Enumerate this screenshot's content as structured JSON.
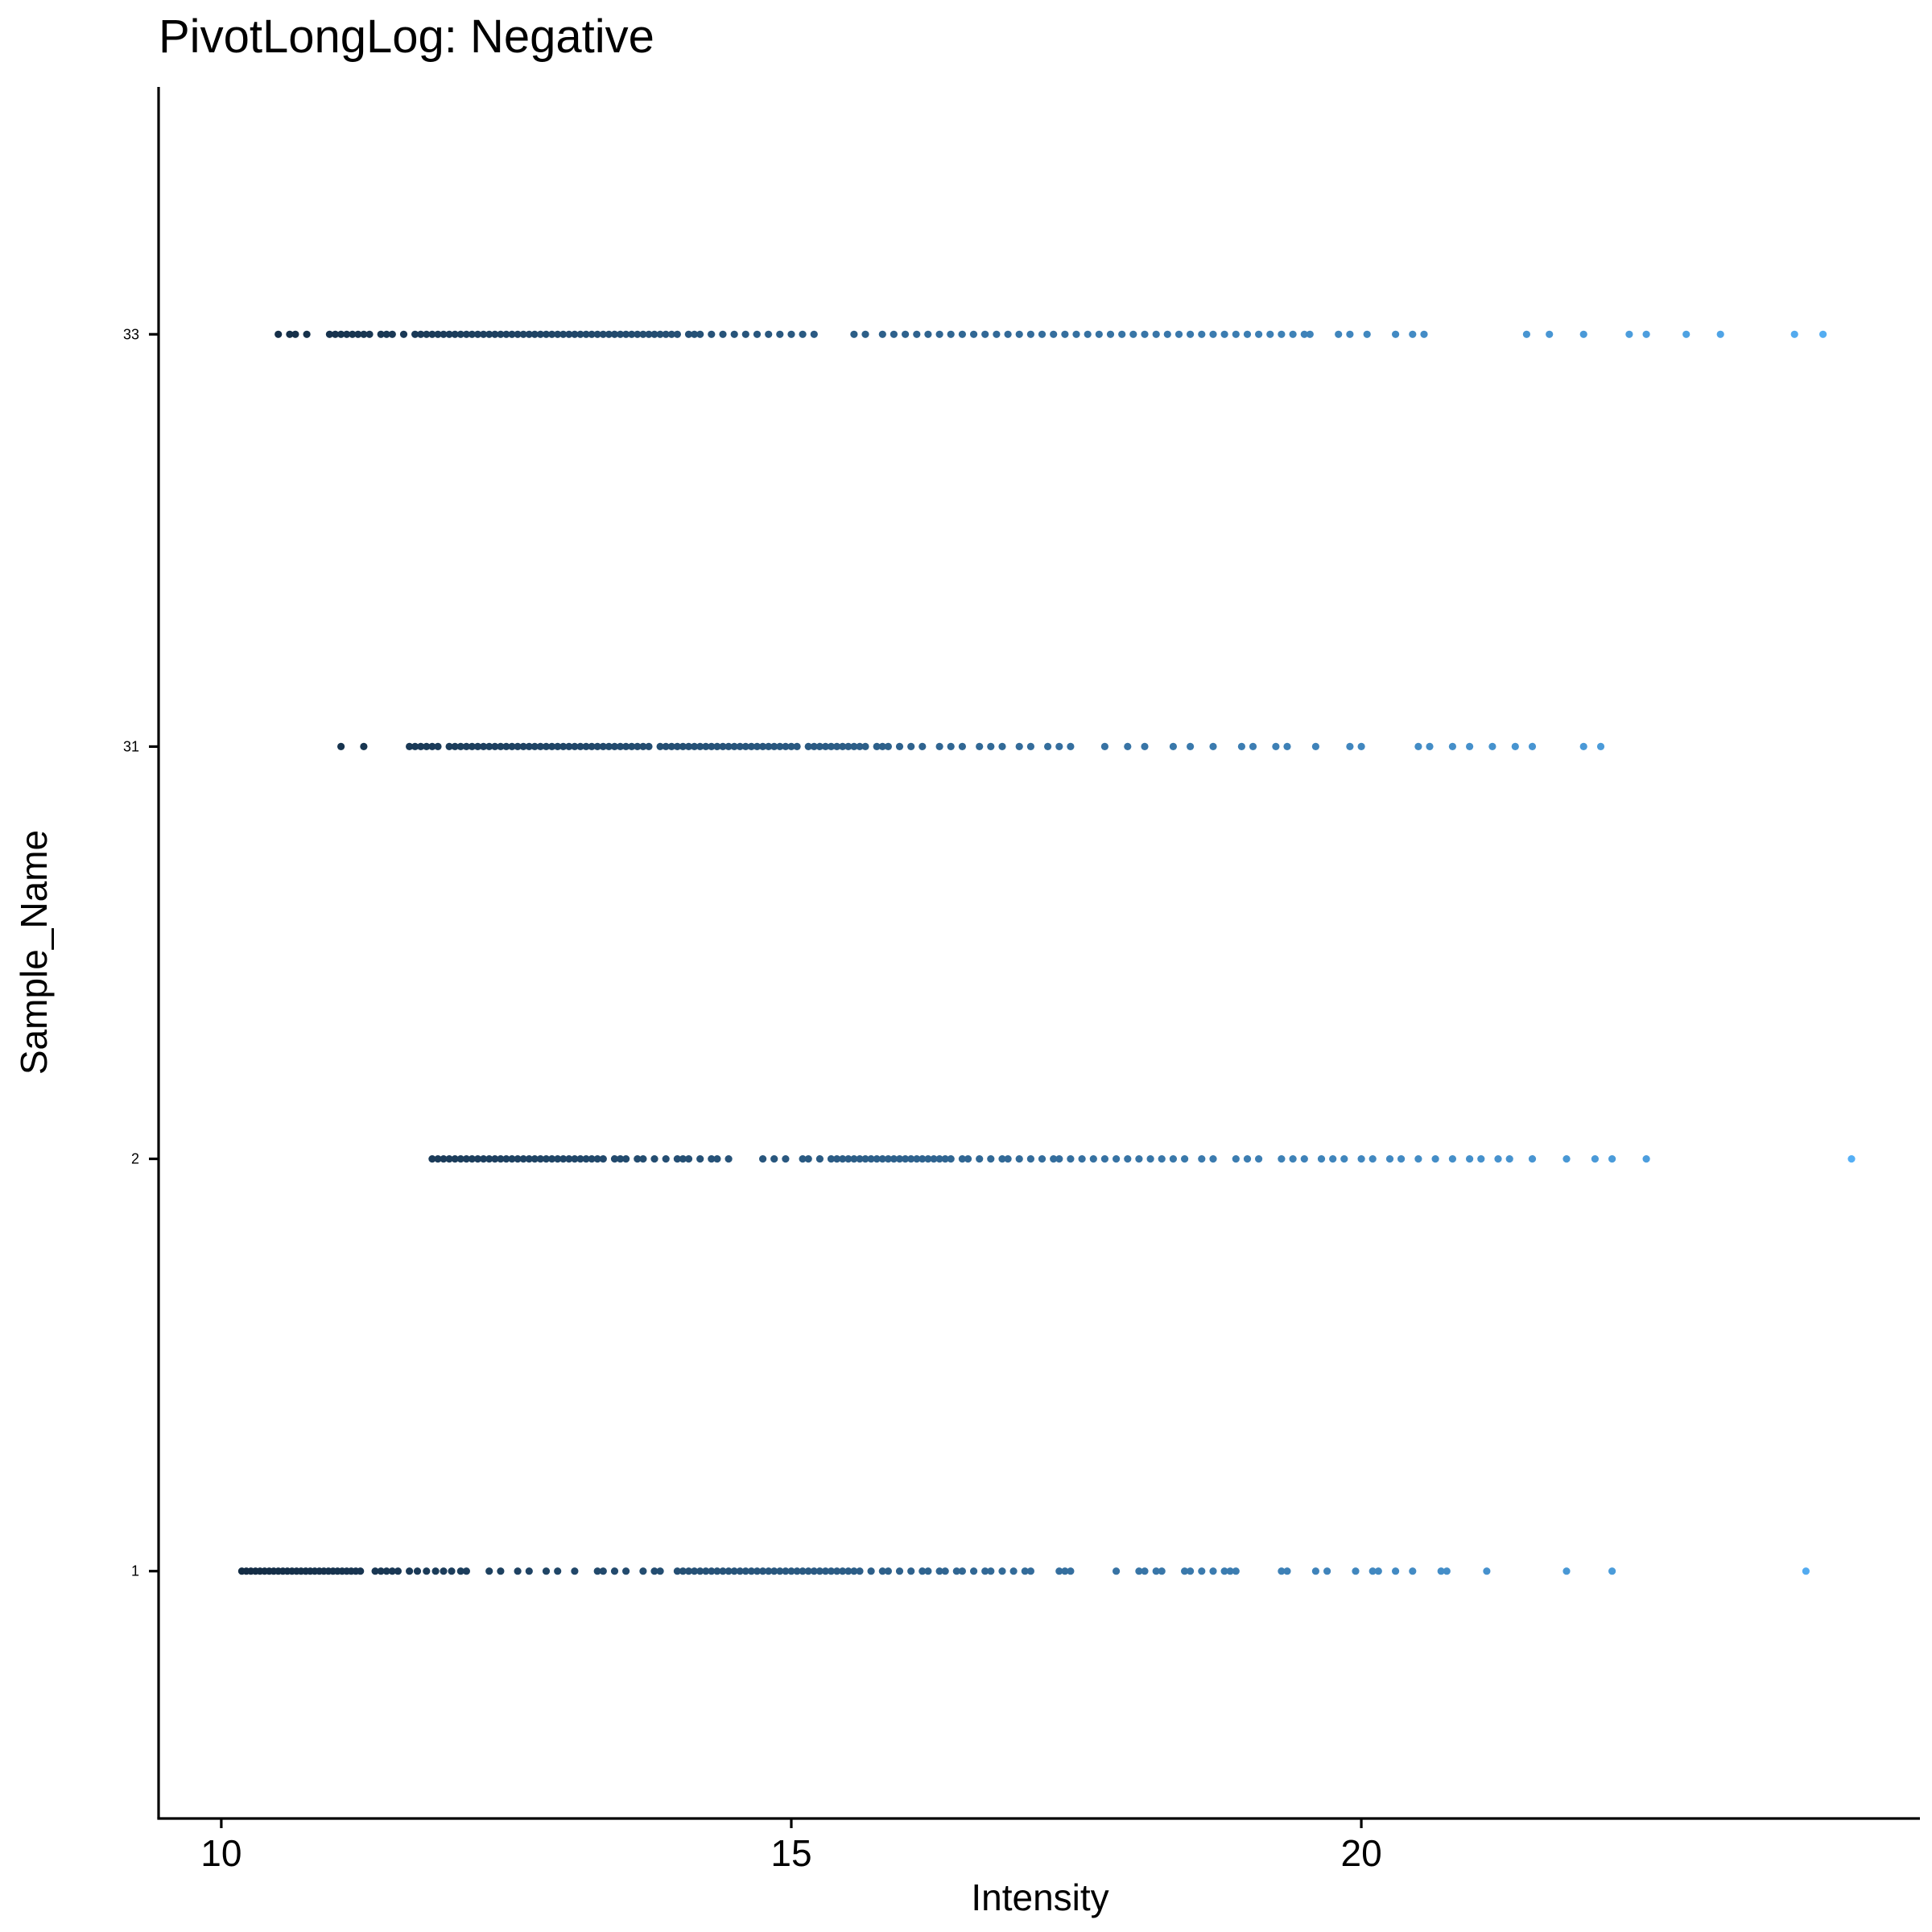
{
  "chart_data": {
    "type": "scatter",
    "title": "PivotLongLog: Negative",
    "xlabel": "Intensity",
    "ylabel": "Sample_Name",
    "xlim": [
      9.45,
      24.9
    ],
    "x_ticks": [
      10,
      15,
      20
    ],
    "categories": [
      "1",
      "2",
      "31",
      "33"
    ],
    "grid": false,
    "legend": "none",
    "color_scale": {
      "low": "#132b43",
      "high": "#56b1f7",
      "domain": [
        10.1,
        24.5
      ]
    },
    "series": [
      {
        "category": "1",
        "x": [
          10.18,
          10.22,
          10.26,
          10.3,
          10.34,
          10.38,
          10.42,
          10.46,
          10.5,
          10.54,
          10.58,
          10.62,
          10.66,
          10.7,
          10.74,
          10.78,
          10.82,
          10.86,
          10.9,
          10.94,
          10.98,
          11.02,
          11.06,
          11.1,
          11.14,
          11.18,
          11.22,
          11.35,
          11.4,
          11.45,
          11.5,
          11.55,
          11.65,
          11.72,
          11.8,
          11.88,
          11.95,
          12.02,
          12.1,
          12.15,
          12.35,
          12.45,
          12.6,
          12.7,
          12.85,
          12.95,
          13.1,
          13.3,
          13.35,
          13.45,
          13.55,
          13.7,
          13.8,
          13.85,
          14.0,
          14.05,
          14.1,
          14.15,
          14.2,
          14.25,
          14.3,
          14.35,
          14.4,
          14.45,
          14.5,
          14.55,
          14.6,
          14.65,
          14.7,
          14.75,
          14.8,
          14.85,
          14.9,
          14.95,
          15.0,
          15.05,
          15.1,
          15.15,
          15.2,
          15.25,
          15.3,
          15.35,
          15.4,
          15.45,
          15.5,
          15.55,
          15.6,
          15.7,
          15.8,
          15.85,
          15.95,
          16.05,
          16.15,
          16.2,
          16.3,
          16.35,
          16.45,
          16.5,
          16.6,
          16.7,
          16.75,
          16.85,
          16.95,
          17.05,
          17.1,
          17.35,
          17.4,
          17.45,
          17.85,
          18.05,
          18.1,
          18.2,
          18.25,
          18.45,
          18.5,
          18.6,
          18.7,
          18.8,
          18.85,
          18.9,
          19.3,
          19.35,
          19.6,
          19.7,
          19.95,
          20.1,
          20.15,
          20.3,
          20.45,
          20.7,
          20.75,
          21.1,
          21.8,
          22.2,
          23.9
        ]
      },
      {
        "category": "2",
        "x": [
          11.85,
          11.9,
          11.95,
          12.0,
          12.05,
          12.1,
          12.15,
          12.2,
          12.25,
          12.3,
          12.35,
          12.4,
          12.45,
          12.5,
          12.55,
          12.6,
          12.65,
          12.7,
          12.75,
          12.8,
          12.85,
          12.9,
          12.95,
          13.0,
          13.05,
          13.1,
          13.15,
          13.2,
          13.25,
          13.3,
          13.35,
          13.45,
          13.5,
          13.55,
          13.65,
          13.7,
          13.8,
          13.9,
          14.0,
          14.05,
          14.1,
          14.2,
          14.3,
          14.35,
          14.45,
          14.75,
          14.85,
          14.95,
          15.1,
          15.15,
          15.25,
          15.35,
          15.4,
          15.45,
          15.5,
          15.55,
          15.6,
          15.65,
          15.7,
          15.75,
          15.8,
          15.85,
          15.9,
          15.95,
          16.0,
          16.05,
          16.1,
          16.15,
          16.2,
          16.25,
          16.3,
          16.35,
          16.4,
          16.5,
          16.55,
          16.65,
          16.75,
          16.85,
          16.9,
          17.0,
          17.1,
          17.2,
          17.3,
          17.35,
          17.45,
          17.55,
          17.65,
          17.75,
          17.85,
          17.95,
          18.05,
          18.15,
          18.25,
          18.35,
          18.45,
          18.6,
          18.7,
          18.9,
          19.0,
          19.1,
          19.3,
          19.4,
          19.5,
          19.65,
          19.75,
          19.85,
          20.0,
          20.1,
          20.25,
          20.35,
          20.5,
          20.65,
          20.8,
          20.95,
          21.05,
          21.2,
          21.3,
          21.5,
          21.8,
          22.05,
          22.2,
          22.5,
          24.3
        ]
      },
      {
        "category": "31",
        "x": [
          11.05,
          11.25,
          11.65,
          11.7,
          11.75,
          11.8,
          11.85,
          11.9,
          12.0,
          12.05,
          12.1,
          12.15,
          12.2,
          12.25,
          12.3,
          12.35,
          12.4,
          12.45,
          12.5,
          12.55,
          12.6,
          12.65,
          12.7,
          12.75,
          12.8,
          12.85,
          12.9,
          12.95,
          13.0,
          13.05,
          13.1,
          13.15,
          13.2,
          13.25,
          13.3,
          13.35,
          13.4,
          13.45,
          13.5,
          13.55,
          13.6,
          13.65,
          13.7,
          13.75,
          13.85,
          13.9,
          13.95,
          14.0,
          14.05,
          14.1,
          14.15,
          14.2,
          14.25,
          14.3,
          14.35,
          14.4,
          14.45,
          14.5,
          14.55,
          14.6,
          14.65,
          14.7,
          14.75,
          14.8,
          14.85,
          14.9,
          14.95,
          15.0,
          15.05,
          15.15,
          15.2,
          15.25,
          15.3,
          15.35,
          15.4,
          15.45,
          15.5,
          15.55,
          15.6,
          15.65,
          15.75,
          15.8,
          15.85,
          15.95,
          16.05,
          16.15,
          16.3,
          16.4,
          16.5,
          16.65,
          16.75,
          16.85,
          17.0,
          17.1,
          17.25,
          17.35,
          17.45,
          17.75,
          17.95,
          18.1,
          18.35,
          18.5,
          18.7,
          18.95,
          19.05,
          19.25,
          19.35,
          19.6,
          19.9,
          20.0,
          20.5,
          20.6,
          20.8,
          20.95,
          21.15,
          21.35,
          21.5,
          21.95,
          22.1
        ]
      },
      {
        "category": "33",
        "x": [
          10.5,
          10.6,
          10.65,
          10.75,
          10.95,
          11.0,
          11.05,
          11.1,
          11.15,
          11.2,
          11.25,
          11.3,
          11.4,
          11.45,
          11.5,
          11.6,
          11.7,
          11.75,
          11.8,
          11.85,
          11.9,
          11.95,
          12.0,
          12.05,
          12.1,
          12.15,
          12.2,
          12.25,
          12.3,
          12.35,
          12.4,
          12.45,
          12.5,
          12.55,
          12.6,
          12.65,
          12.7,
          12.75,
          12.8,
          12.85,
          12.9,
          12.95,
          13.0,
          13.05,
          13.1,
          13.15,
          13.2,
          13.25,
          13.3,
          13.35,
          13.4,
          13.45,
          13.5,
          13.55,
          13.6,
          13.65,
          13.7,
          13.75,
          13.8,
          13.85,
          13.9,
          13.95,
          14.0,
          14.1,
          14.15,
          14.2,
          14.3,
          14.4,
          14.5,
          14.6,
          14.7,
          14.8,
          14.9,
          15.0,
          15.1,
          15.2,
          15.55,
          15.65,
          15.8,
          15.9,
          16.0,
          16.1,
          16.2,
          16.3,
          16.4,
          16.5,
          16.6,
          16.7,
          16.8,
          16.9,
          17.0,
          17.1,
          17.2,
          17.3,
          17.4,
          17.5,
          17.6,
          17.7,
          17.8,
          17.9,
          18.0,
          18.1,
          18.2,
          18.3,
          18.4,
          18.5,
          18.6,
          18.7,
          18.8,
          18.9,
          19.0,
          19.1,
          19.2,
          19.3,
          19.4,
          19.5,
          19.55,
          19.8,
          19.9,
          20.05,
          20.3,
          20.45,
          20.55,
          21.45,
          21.65,
          21.95,
          22.35,
          22.5,
          22.85,
          23.15,
          23.8,
          24.05
        ]
      }
    ]
  }
}
